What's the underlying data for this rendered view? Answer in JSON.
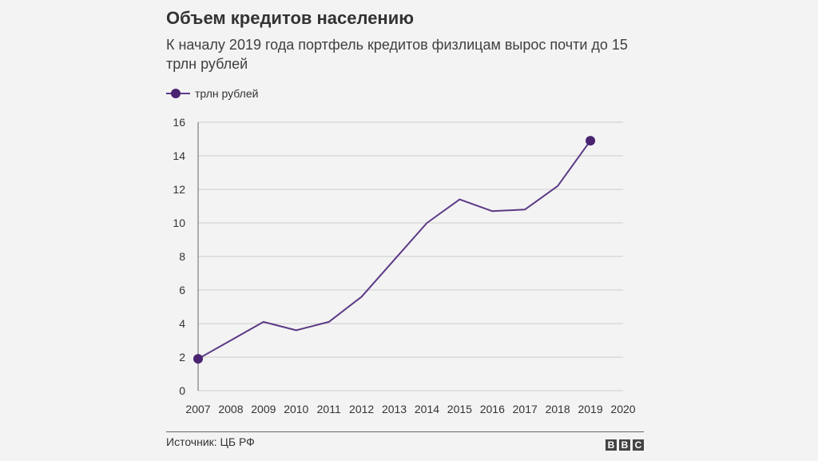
{
  "header": {
    "title": "Объем кредитов населению",
    "subtitle": "К началу 2019 года портфель кредитов физлицам вырос почти до 15 трлн рублей"
  },
  "legend": {
    "label": "трлн рублей"
  },
  "footer": {
    "source": "Источник: ЦБ РФ",
    "logo": [
      "B",
      "B",
      "C"
    ]
  },
  "colors": {
    "series": "#5b3a86",
    "marker": "#4a2470",
    "grid": "#cccccc",
    "axis": "#666666"
  },
  "chart_data": {
    "type": "line",
    "title": "Объем кредитов населению",
    "subtitle": "К началу 2019 года портфель кредитов физлицам вырос почти до 15 трлн рублей",
    "xlabel": "",
    "ylabel": "",
    "xlim": [
      2007,
      2020
    ],
    "ylim": [
      0,
      16
    ],
    "xticks": [
      "2007",
      "2008",
      "2009",
      "2010",
      "2011",
      "2012",
      "2013",
      "2014",
      "2015",
      "2016",
      "2017",
      "2018",
      "2019",
      "2020"
    ],
    "yticks": [
      "0",
      "2",
      "4",
      "6",
      "8",
      "10",
      "12",
      "14",
      "16"
    ],
    "grid": true,
    "legend_position": "top-left",
    "series": [
      {
        "name": "трлн рублей",
        "x": [
          2007,
          2008,
          2009,
          2010,
          2011,
          2012,
          2013,
          2014,
          2015,
          2016,
          2017,
          2018,
          2019
        ],
        "y": [
          1.9,
          3.0,
          4.1,
          3.6,
          4.1,
          5.6,
          7.8,
          10.0,
          11.4,
          10.7,
          10.8,
          12.2,
          14.9
        ],
        "markers_at": [
          2007,
          2019
        ]
      }
    ]
  }
}
